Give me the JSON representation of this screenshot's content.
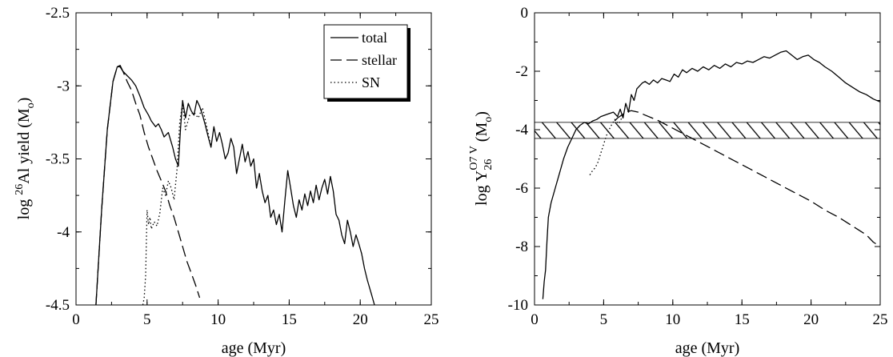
{
  "chart_data": [
    {
      "type": "line",
      "title": "",
      "xlabel": "age (Myr)",
      "ylabel_parts": {
        "prefix": "log ",
        "sup": "26",
        "mid": "Al yield (M",
        "sub": "o",
        "suffix": ")"
      },
      "xlim": [
        0,
        25
      ],
      "ylim": [
        -4.5,
        -2.5
      ],
      "xticks": [
        0,
        5,
        10,
        15,
        20,
        25
      ],
      "yticks": [
        -4.5,
        -4,
        -3.5,
        -3,
        -2.5
      ],
      "legend": {
        "placement": "top-right",
        "entries": [
          "total",
          "stellar",
          "SN"
        ]
      },
      "series": [
        {
          "name": "total",
          "style": "solid",
          "x": [
            1.4,
            1.8,
            2.2,
            2.6,
            2.9,
            3.1,
            3.3,
            3.6,
            3.9,
            4.2,
            4.5,
            4.8,
            5.1,
            5.3,
            5.6,
            5.8,
            6.0,
            6.2,
            6.5,
            6.8,
            7.0,
            7.2,
            7.35,
            7.5,
            7.7,
            7.9,
            8.1,
            8.3,
            8.5,
            8.7,
            8.9,
            9.1,
            9.3,
            9.5,
            9.7,
            9.9,
            10.1,
            10.3,
            10.5,
            10.7,
            10.9,
            11.1,
            11.3,
            11.5,
            11.7,
            11.9,
            12.1,
            12.3,
            12.5,
            12.7,
            12.9,
            13.1,
            13.3,
            13.5,
            13.7,
            13.9,
            14.1,
            14.3,
            14.5,
            14.7,
            14.9,
            15.1,
            15.3,
            15.5,
            15.7,
            15.9,
            16.1,
            16.3,
            16.5,
            16.7,
            16.9,
            17.1,
            17.3,
            17.5,
            17.7,
            17.9,
            18.1,
            18.3,
            18.5,
            18.7,
            18.9,
            19.1,
            19.3,
            19.5,
            19.7,
            19.9,
            20.1,
            20.3,
            20.5,
            20.8,
            21.0
          ],
          "y": [
            -4.5,
            -3.85,
            -3.3,
            -2.97,
            -2.87,
            -2.86,
            -2.9,
            -2.93,
            -2.96,
            -3.0,
            -3.07,
            -3.15,
            -3.2,
            -3.24,
            -3.28,
            -3.26,
            -3.3,
            -3.35,
            -3.32,
            -3.42,
            -3.5,
            -3.55,
            -3.3,
            -3.1,
            -3.22,
            -3.12,
            -3.17,
            -3.2,
            -3.1,
            -3.14,
            -3.2,
            -3.27,
            -3.35,
            -3.42,
            -3.28,
            -3.38,
            -3.32,
            -3.4,
            -3.5,
            -3.46,
            -3.36,
            -3.42,
            -3.6,
            -3.5,
            -3.4,
            -3.52,
            -3.45,
            -3.55,
            -3.5,
            -3.7,
            -3.6,
            -3.72,
            -3.8,
            -3.75,
            -3.9,
            -3.85,
            -3.95,
            -3.88,
            -4.0,
            -3.78,
            -3.58,
            -3.7,
            -3.82,
            -3.9,
            -3.78,
            -3.85,
            -3.74,
            -3.82,
            -3.72,
            -3.8,
            -3.68,
            -3.78,
            -3.7,
            -3.64,
            -3.74,
            -3.62,
            -3.72,
            -3.88,
            -3.92,
            -4.02,
            -4.08,
            -3.92,
            -4.0,
            -4.1,
            -4.02,
            -4.08,
            -4.15,
            -4.25,
            -4.33,
            -4.43,
            -4.5
          ]
        },
        {
          "name": "stellar",
          "style": "dashed",
          "x": [
            1.4,
            1.8,
            2.2,
            2.6,
            2.9,
            3.1,
            3.3,
            3.6,
            3.9,
            4.2,
            4.5,
            4.8,
            5.1,
            5.4,
            5.7,
            6.0,
            6.3,
            6.6,
            6.9,
            7.2,
            7.5,
            7.8,
            8.1,
            8.4,
            8.7
          ],
          "y": [
            -4.5,
            -3.85,
            -3.3,
            -2.97,
            -2.87,
            -2.87,
            -2.9,
            -2.97,
            -3.03,
            -3.12,
            -3.2,
            -3.32,
            -3.42,
            -3.5,
            -3.58,
            -3.65,
            -3.72,
            -3.82,
            -3.9,
            -4.0,
            -4.1,
            -4.2,
            -4.28,
            -4.36,
            -4.45
          ]
        },
        {
          "name": "SN",
          "style": "dotted",
          "x": [
            4.7,
            4.8,
            4.9,
            5.0,
            5.1,
            5.2,
            5.3,
            5.5,
            5.7,
            5.9,
            6.1,
            6.3,
            6.5,
            6.7,
            6.9,
            7.1,
            7.3,
            7.5,
            7.7,
            8.0,
            8.3,
            8.6,
            8.9,
            9.2,
            9.5
          ],
          "y": [
            -4.5,
            -4.45,
            -4.3,
            -3.85,
            -3.95,
            -3.9,
            -3.98,
            -3.93,
            -3.96,
            -3.87,
            -3.7,
            -3.75,
            -3.65,
            -3.7,
            -3.78,
            -3.58,
            -3.25,
            -3.12,
            -3.3,
            -3.2,
            -3.18,
            -3.22,
            -3.15,
            -3.28,
            -3.42
          ]
        }
      ]
    },
    {
      "type": "line",
      "title": "",
      "xlabel": "age (Myr)",
      "ylabel_parts": {
        "prefix": "log Y",
        "sub": "26",
        "sup": "O7 V",
        "suffix": " (M",
        "sub2": "o",
        "suffix2": ")"
      },
      "xlim": [
        0,
        25
      ],
      "ylim": [
        -10,
        0
      ],
      "xticks": [
        0,
        5,
        10,
        15,
        20,
        25
      ],
      "yticks": [
        -10,
        -8,
        -6,
        -4,
        -2,
        0
      ],
      "band": {
        "ymin": -4.3,
        "ymax": -3.75,
        "pattern": "hatched"
      },
      "series": [
        {
          "name": "total",
          "style": "solid",
          "x": [
            0.6,
            0.7,
            0.8,
            0.9,
            1.0,
            1.2,
            1.5,
            1.8,
            2.1,
            2.4,
            2.7,
            3.0,
            3.3,
            3.6,
            3.9,
            4.2,
            4.5,
            4.8,
            5.1,
            5.4,
            5.7,
            6.0,
            6.2,
            6.4,
            6.6,
            6.8,
            7.0,
            7.2,
            7.4,
            7.6,
            7.8,
            8.0,
            8.3,
            8.6,
            8.9,
            9.2,
            9.5,
            9.8,
            10.1,
            10.4,
            10.7,
            11.0,
            11.4,
            11.8,
            12.2,
            12.6,
            13.0,
            13.4,
            13.8,
            14.2,
            14.6,
            15.0,
            15.4,
            15.8,
            16.2,
            16.6,
            17.0,
            17.4,
            17.8,
            18.2,
            18.6,
            19.0,
            19.4,
            19.8,
            20.2,
            20.6,
            21.0,
            21.5,
            22.0,
            22.5,
            23.0,
            23.5,
            24.0,
            24.5,
            25.0
          ],
          "y": [
            -9.8,
            -9.2,
            -8.8,
            -7.8,
            -7.0,
            -6.5,
            -6.0,
            -5.5,
            -5.0,
            -4.6,
            -4.3,
            -4.0,
            -3.85,
            -3.75,
            -3.8,
            -3.7,
            -3.65,
            -3.55,
            -3.5,
            -3.45,
            -3.4,
            -3.55,
            -3.3,
            -3.6,
            -3.1,
            -3.4,
            -2.8,
            -3.0,
            -2.6,
            -2.5,
            -2.4,
            -2.35,
            -2.45,
            -2.3,
            -2.4,
            -2.25,
            -2.3,
            -2.35,
            -2.1,
            -2.2,
            -1.95,
            -2.05,
            -1.9,
            -2.0,
            -1.85,
            -1.95,
            -1.8,
            -1.9,
            -1.75,
            -1.85,
            -1.7,
            -1.75,
            -1.65,
            -1.7,
            -1.6,
            -1.5,
            -1.55,
            -1.45,
            -1.35,
            -1.3,
            -1.45,
            -1.6,
            -1.5,
            -1.45,
            -1.6,
            -1.7,
            -1.85,
            -2.0,
            -2.2,
            -2.4,
            -2.55,
            -2.7,
            -2.8,
            -2.95,
            -3.05
          ]
        },
        {
          "name": "stellar",
          "style": "dashed",
          "x": [
            5.8,
            6.0,
            6.3,
            6.6,
            7.0,
            7.5,
            8.0,
            8.5,
            9.0,
            10.0,
            11.0,
            12.0,
            13.0,
            14.0,
            15.0,
            16.0,
            17.0,
            18.0,
            19.0,
            20.0,
            21.0,
            22.0,
            23.0,
            24.0,
            24.5,
            25.0
          ],
          "y": [
            -3.7,
            -3.6,
            -3.5,
            -3.4,
            -3.35,
            -3.4,
            -3.5,
            -3.6,
            -3.7,
            -3.95,
            -4.2,
            -4.45,
            -4.7,
            -4.95,
            -5.2,
            -5.45,
            -5.7,
            -5.95,
            -6.2,
            -6.45,
            -6.75,
            -7.0,
            -7.3,
            -7.6,
            -7.85,
            -8.0
          ]
        },
        {
          "name": "SN",
          "style": "dotted",
          "x": [
            4.0,
            4.2,
            4.4,
            4.6,
            4.8,
            5.0,
            5.2,
            5.5,
            5.8,
            6.1,
            6.4
          ],
          "y": [
            -5.55,
            -5.4,
            -5.3,
            -5.1,
            -4.8,
            -4.5,
            -4.2,
            -3.9,
            -3.65,
            -3.8,
            -3.5
          ]
        }
      ]
    }
  ]
}
